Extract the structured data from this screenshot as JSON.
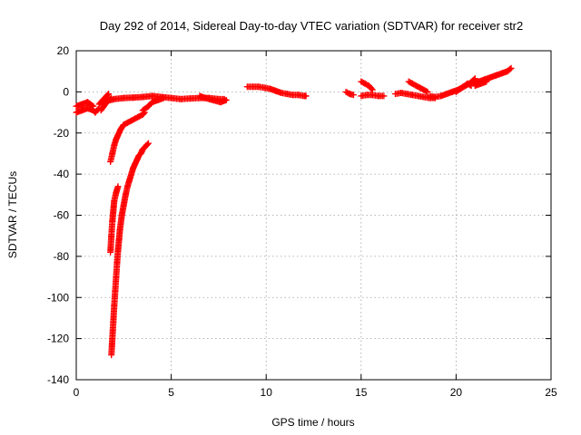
{
  "chart_data": {
    "type": "scatter",
    "title": "Day 292 of 2014, Sidereal Day-to-day VTEC variation (SDTVAR) for receiver str2",
    "xlabel": "GPS time / hours",
    "ylabel": "SDTVAR / TECUs",
    "xlim": [
      0,
      25
    ],
    "ylim": [
      -140,
      20
    ],
    "xticks": [
      0,
      5,
      10,
      15,
      20,
      25
    ],
    "yticks": [
      -140,
      -120,
      -100,
      -80,
      -60,
      -40,
      -20,
      0,
      20
    ],
    "grid": true,
    "marker": "+",
    "color": "#ff0000",
    "segments": [
      {
        "x": [
          0.0,
          0.3,
          0.6,
          0.9,
          1.0,
          1.2
        ],
        "y": [
          -10,
          -9,
          -8,
          -9,
          -10,
          -8
        ]
      },
      {
        "x": [
          0.0,
          0.3,
          0.6,
          0.9
        ],
        "y": [
          -7,
          -6,
          -5,
          -7
        ]
      },
      {
        "x": [
          1.2,
          1.4,
          1.6,
          1.7
        ],
        "y": [
          -6,
          -4,
          -2,
          -1
        ]
      },
      {
        "x": [
          1.3,
          1.45,
          1.6,
          1.75,
          1.85
        ],
        "y": [
          -9,
          -7,
          -5,
          -4,
          -3
        ]
      },
      {
        "x": [
          1.8,
          2.0,
          2.5,
          3.0,
          3.5,
          4.0,
          4.5,
          5.0,
          5.5,
          6.0,
          6.5,
          7.0,
          7.5,
          7.8
        ],
        "y": [
          -4,
          -3.5,
          -3,
          -2.8,
          -2.5,
          -2,
          -2.5,
          -3,
          -3.5,
          -3.2,
          -3,
          -3,
          -3.5,
          -3.5
        ]
      },
      {
        "x": [
          3.5,
          3.8,
          4.0,
          4.3,
          4.6
        ],
        "y": [
          -9,
          -7,
          -5,
          -4,
          -3
        ]
      },
      {
        "x": [
          6.5,
          6.8,
          7.2,
          7.6,
          7.9
        ],
        "y": [
          -2,
          -3,
          -4,
          -5,
          -4
        ]
      },
      {
        "x": [
          1.8,
          1.9,
          2.0,
          2.1,
          2.2,
          2.35,
          2.5,
          2.7,
          2.9,
          3.1,
          3.3,
          3.5,
          3.6
        ],
        "y": [
          -34,
          -30,
          -26,
          -23,
          -21,
          -18,
          -16,
          -15,
          -14,
          -13,
          -12,
          -11,
          -10
        ]
      },
      {
        "x": [
          1.8,
          1.85,
          1.9,
          1.95,
          2.0,
          2.1,
          2.2
        ],
        "y": [
          -78,
          -70,
          -63,
          -58,
          -53,
          -49,
          -46
        ]
      },
      {
        "x": [
          1.85,
          1.9,
          1.95,
          2.0,
          2.05,
          2.1,
          2.15,
          2.2,
          2.25,
          2.3,
          2.4,
          2.5,
          2.6,
          2.7,
          2.8,
          2.9,
          3.0,
          3.1,
          3.2,
          3.3,
          3.4,
          3.5,
          3.6,
          3.7,
          3.8
        ],
        "y": [
          -128,
          -120,
          -112,
          -104,
          -97,
          -90,
          -83,
          -77,
          -72,
          -67,
          -60,
          -55,
          -50,
          -46,
          -43,
          -40,
          -37,
          -35,
          -33,
          -31,
          -30,
          -28,
          -27,
          -26,
          -25
        ]
      },
      {
        "x": [
          9.0,
          9.3,
          9.6,
          9.9,
          10.2,
          10.5,
          10.8,
          11.1,
          11.4,
          11.7,
          12.0,
          12.1
        ],
        "y": [
          2.5,
          2.5,
          2.5,
          2,
          1.5,
          0.5,
          -0.5,
          -1,
          -1.5,
          -1.5,
          -2,
          -2
        ]
      },
      {
        "x": [
          14.2,
          14.4,
          14.6
        ],
        "y": [
          0,
          -1,
          -1.5
        ]
      },
      {
        "x": [
          15.0,
          15.2,
          15.4,
          15.5,
          15.6
        ],
        "y": [
          5,
          4,
          3,
          2,
          1
        ]
      },
      {
        "x": [
          15.0,
          15.3,
          15.6,
          15.9,
          16.2
        ],
        "y": [
          -2,
          -1.5,
          -1.5,
          -2,
          -2
        ]
      },
      {
        "x": [
          16.8,
          17.1,
          17.4,
          17.7,
          18.0,
          18.3,
          18.6,
          18.9
        ],
        "y": [
          -1,
          -0.5,
          -1,
          -1.5,
          -2,
          -2.5,
          -3,
          -3
        ]
      },
      {
        "x": [
          17.5,
          17.7,
          17.9,
          18.1,
          18.3,
          18.5
        ],
        "y": [
          5,
          4,
          3,
          2,
          1,
          0
        ]
      },
      {
        "x": [
          18.6,
          18.9,
          19.2,
          19.5,
          19.8,
          20.1,
          20.4,
          20.7,
          21.0
        ],
        "y": [
          -2,
          -2.5,
          -2,
          -1,
          0,
          1,
          2.5,
          4,
          6.5
        ]
      },
      {
        "x": [
          20.0,
          20.3,
          20.6,
          20.8
        ],
        "y": [
          0,
          2,
          4,
          3
        ]
      },
      {
        "x": [
          20.9,
          21.2,
          21.5,
          21.8,
          22.1,
          22.4,
          22.7,
          22.9
        ],
        "y": [
          4,
          5,
          6,
          7,
          8,
          9,
          10,
          11.5
        ]
      },
      {
        "x": [
          21.0,
          21.3,
          21.6
        ],
        "y": [
          3,
          4,
          5
        ]
      }
    ]
  }
}
